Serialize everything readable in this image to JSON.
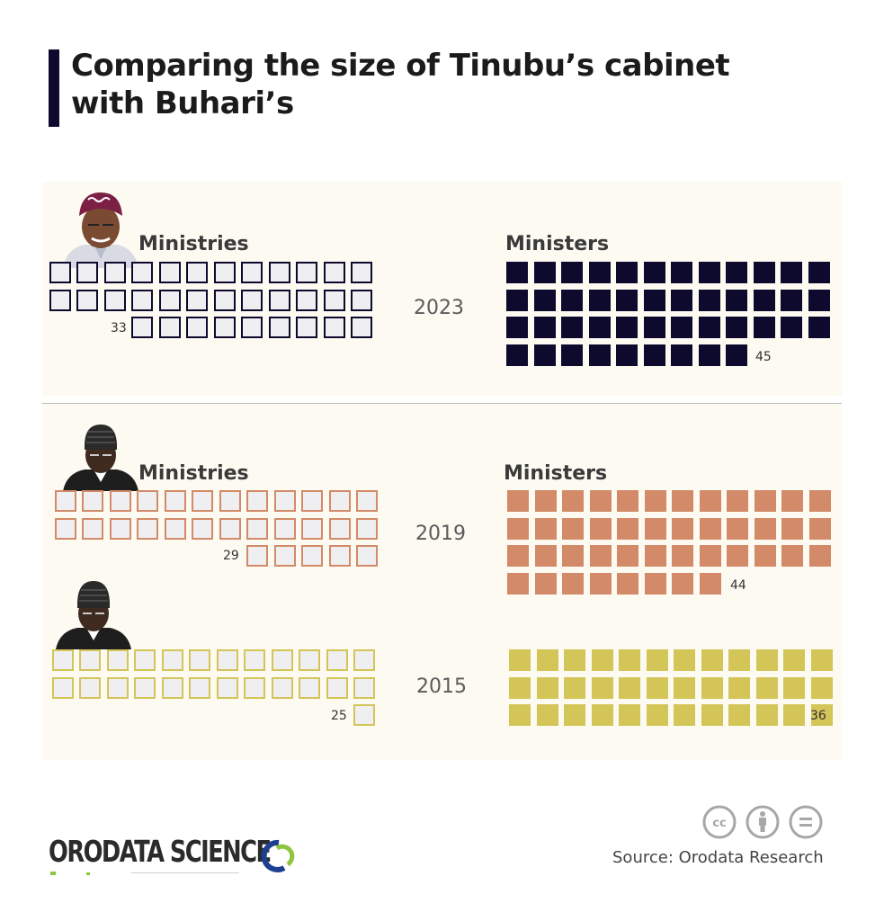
{
  "title_line1": "Comparing the size of Tinubu’s cabinet",
  "title_line2": "with Buhari’s",
  "labels": {
    "ministries": "Ministries",
    "ministers": "Ministers"
  },
  "source": "Source: Orodata Research",
  "logo_text": "ORODATA SCIENCE",
  "colors": {
    "tinubu": "#0d0a2e",
    "buhari_2019": "#d38a68",
    "buhari_2015": "#d4c558",
    "panel": "#fcfaf1",
    "empty_fill": "#efeff1"
  },
  "icons": [
    "cc-icon",
    "attribution-icon",
    "no-derivatives-icon"
  ],
  "chart_data": {
    "type": "table",
    "categories": [
      "2023",
      "2019",
      "2015"
    ],
    "series": [
      {
        "name": "Ministries",
        "values": [
          33,
          29,
          25
        ]
      },
      {
        "name": "Ministers",
        "values": [
          45,
          44,
          36
        ]
      }
    ]
  }
}
